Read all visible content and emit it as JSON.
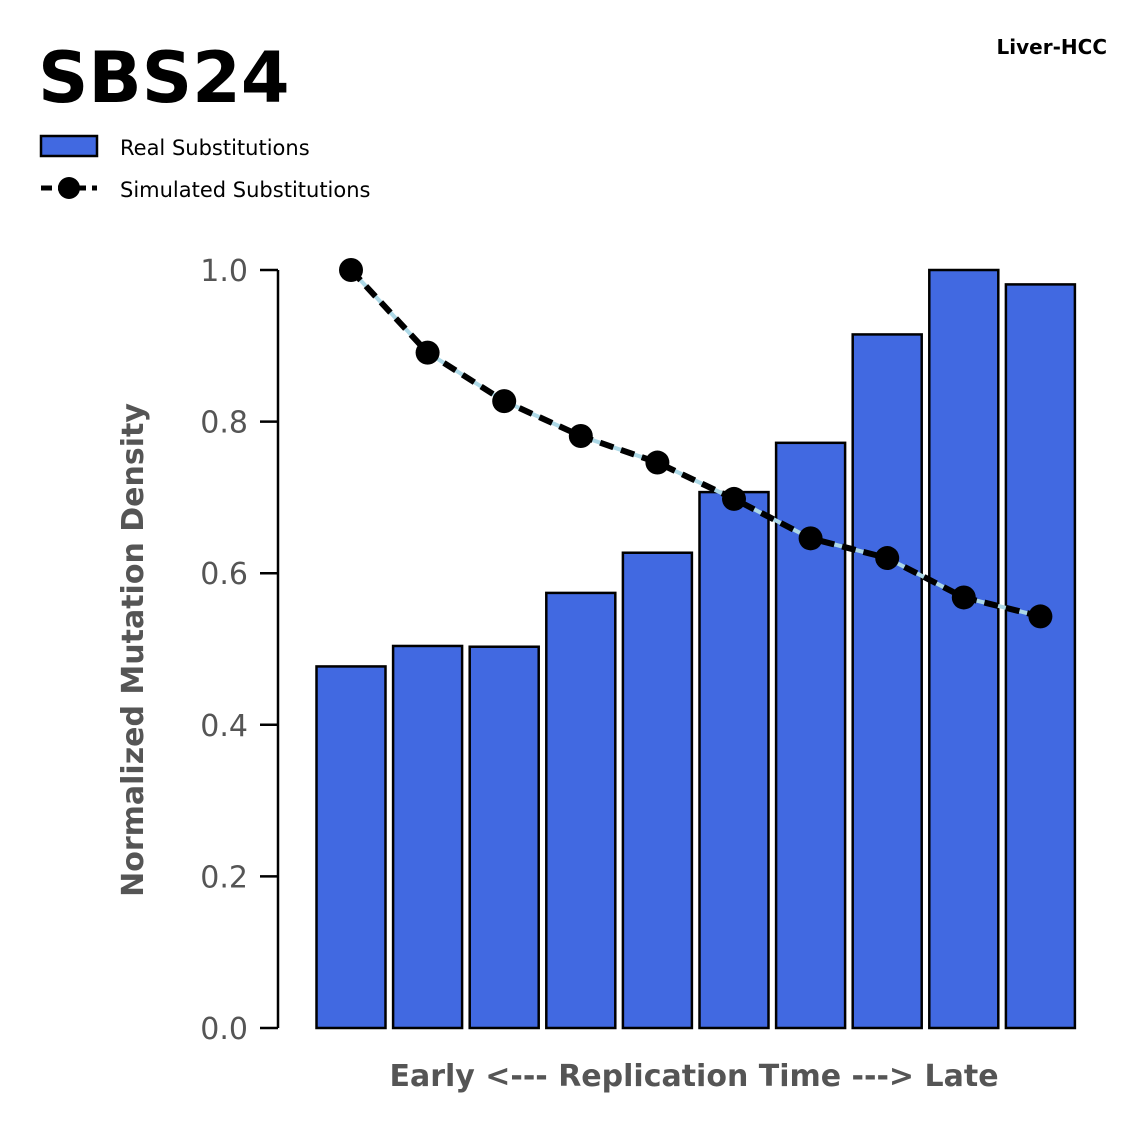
{
  "chart_data": {
    "type": "bar",
    "title": "SBS24",
    "subtitle": "Liver-HCC",
    "xlabel": "Early <--- Replication Time ---> Late",
    "ylabel": "Normalized Mutation Density",
    "ylim": [
      0,
      1.0
    ],
    "yticks": [
      "0.0",
      "0.2",
      "0.4",
      "0.6",
      "0.8",
      "1.0"
    ],
    "grid": false,
    "legend_placement": "top-left",
    "series": [
      {
        "name": "Real Substitutions",
        "kind": "bar",
        "color": "#4169e1",
        "values": [
          0.477,
          0.504,
          0.503,
          0.574,
          0.627,
          0.707,
          0.772,
          0.915,
          1.0,
          0.981
        ]
      },
      {
        "name": "Simulated Substitutions",
        "kind": "line",
        "color": "#000000",
        "underlay_color": "#add8e6",
        "values": [
          1.0,
          0.891,
          0.827,
          0.781,
          0.746,
          0.698,
          0.646,
          0.62,
          0.568,
          0.543
        ]
      }
    ]
  }
}
